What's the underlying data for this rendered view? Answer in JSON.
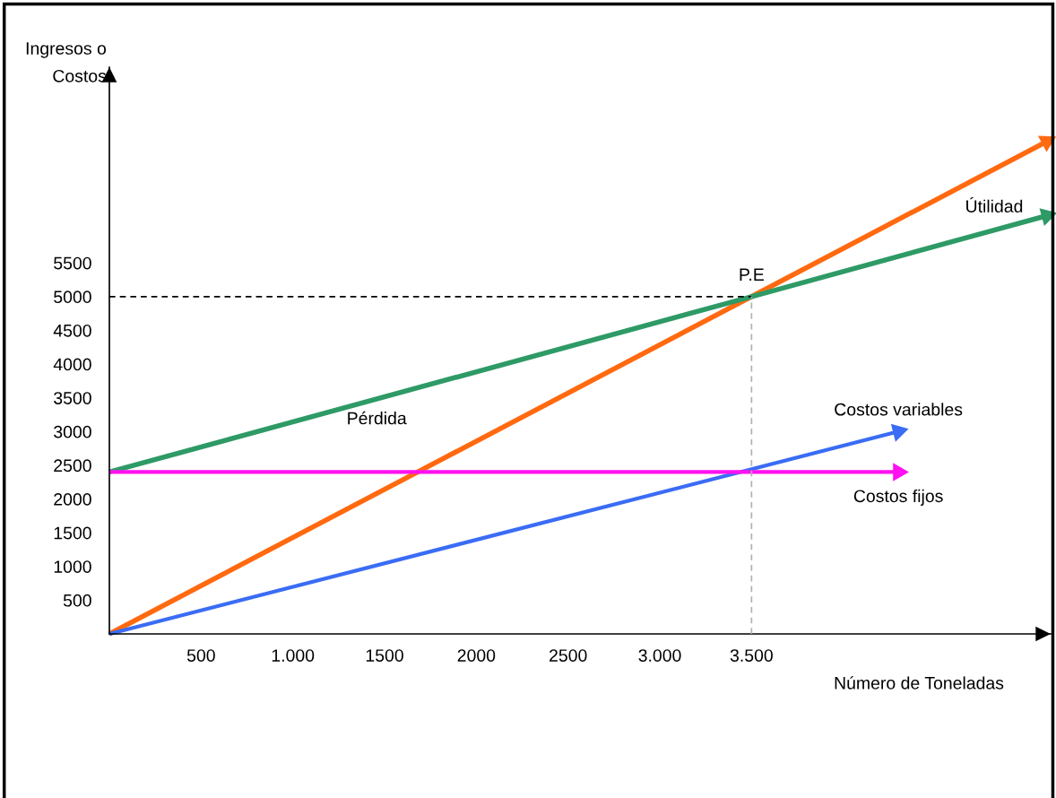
{
  "chart_data": {
    "type": "line",
    "xlabel": "Número de Toneladas",
    "ylabel": "Ingresos o\nCostos",
    "xlim": [
      0,
      5130
    ],
    "ylim": [
      0,
      8400
    ],
    "xticks": [
      500,
      {
        "value": 1000,
        "label": "1.000"
      },
      1500,
      2000,
      2500,
      {
        "value": 3000,
        "label": "3.000"
      },
      {
        "value": 3500,
        "label": "3.500"
      }
    ],
    "yticks": [
      500,
      1000,
      1500,
      2000,
      2500,
      3000,
      3500,
      4000,
      4500,
      5000,
      5500
    ],
    "grid": false,
    "legend": false,
    "series": [
      {
        "x": [
          0,
          3500
        ],
        "values": [
          5000,
          5000
        ],
        "color": "#000000",
        "line_style": "dashed"
      },
      {
        "x": [
          3500,
          3500
        ],
        "values": [
          0,
          5000
        ],
        "color": "#b0b0b0",
        "line_style": "dashed"
      },
      {
        "x": [
          0,
          3500,
          5110
        ],
        "values": [
          0,
          5000,
          7300
        ],
        "color": "#ff6a10",
        "line_style": "solid"
      },
      {
        "x": [
          0,
          3500,
          5110
        ],
        "values": [
          2400,
          5000,
          6200
        ],
        "color": "#2e9a66",
        "line_style": "solid"
      },
      {
        "name": "Costos variables",
        "x": [
          0,
          4300
        ],
        "values": [
          0,
          3000
        ],
        "color": "#3a6cf5",
        "line_style": "solid"
      },
      {
        "name": "Costos fijos",
        "x": [
          0,
          4300
        ],
        "values": [
          2400,
          2400
        ],
        "color": "#ff10f0",
        "line_style": "solid"
      }
    ],
    "annotations": [
      {
        "text": "P.E",
        "x": 3500,
        "y": 5000
      },
      "Útilidad",
      "Pérdida"
    ]
  }
}
